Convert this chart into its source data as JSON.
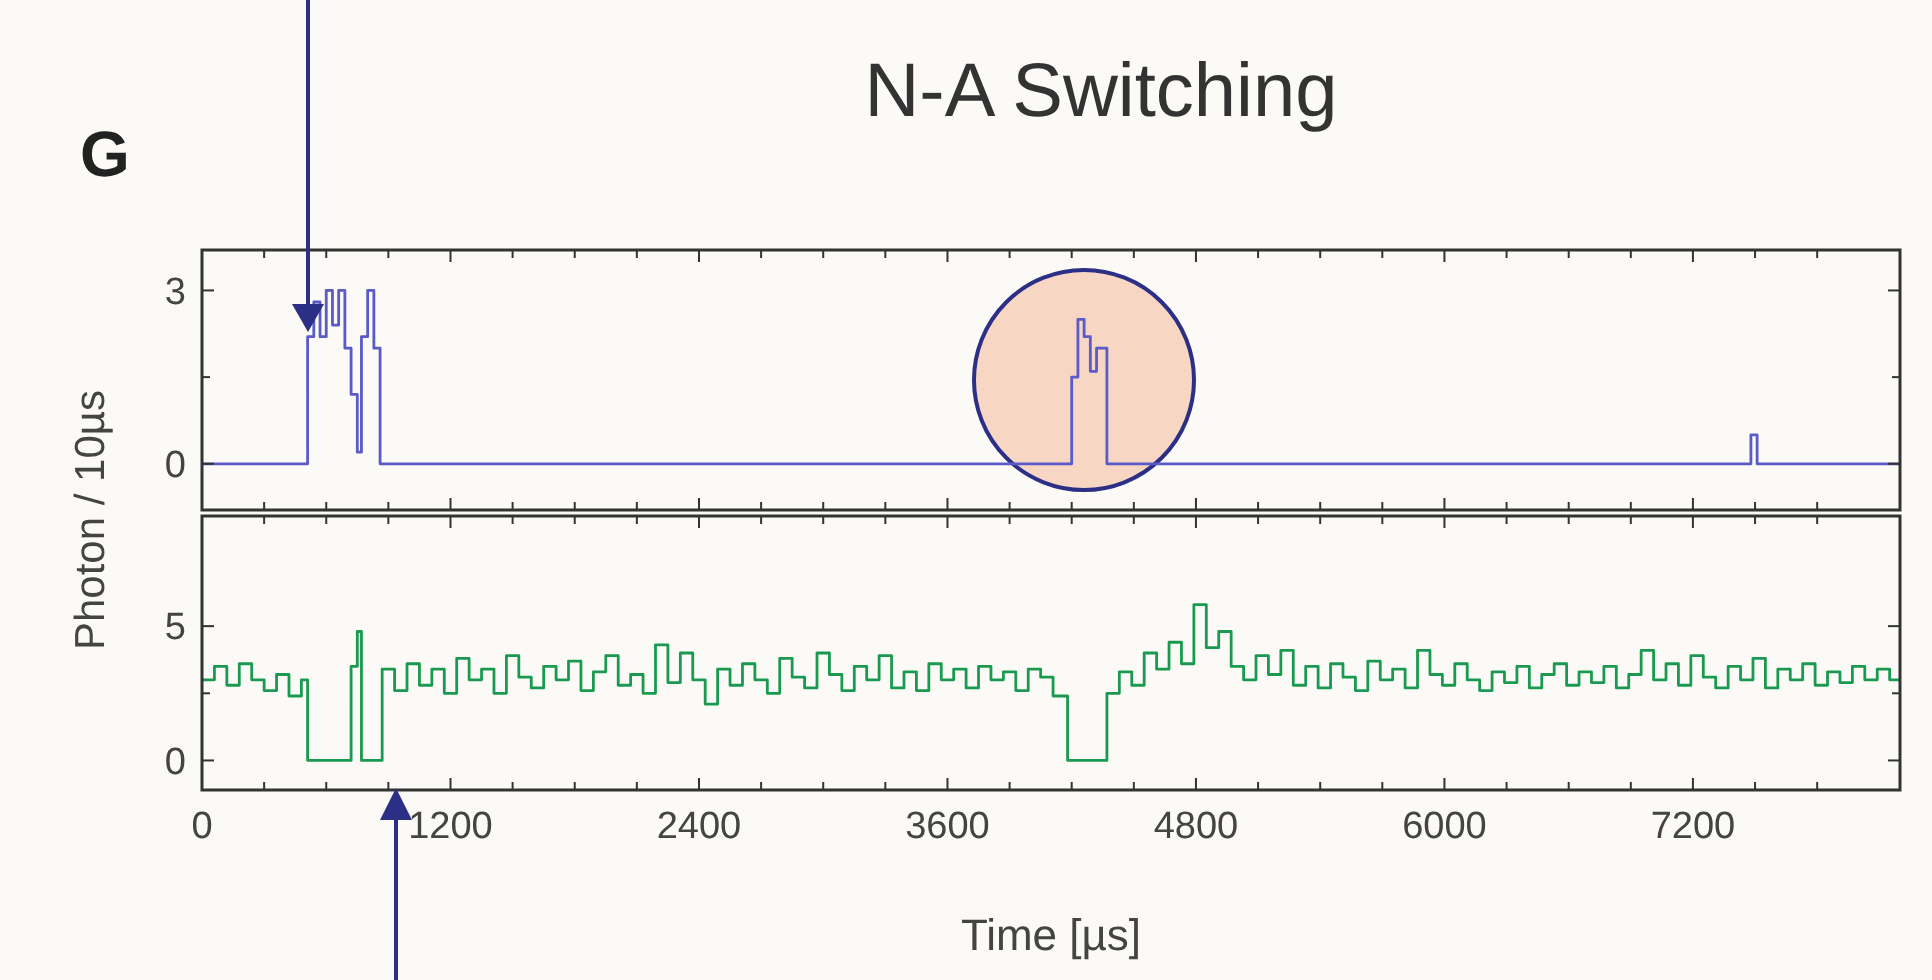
{
  "chart_data": [
    {
      "type": "step",
      "title": "N-A Switching",
      "annotations": [
        "G"
      ],
      "tick_labels": "y",
      "xlim": [
        0,
        8200
      ],
      "xticks": [
        0,
        {
          "value": 300,
          "label": null
        },
        {
          "value": 600,
          "label": null
        },
        {
          "value": 900,
          "label": null
        },
        1200,
        {
          "value": 1500,
          "label": null
        },
        {
          "value": 1800,
          "label": null
        },
        {
          "value": 2100,
          "label": null
        },
        2400,
        {
          "value": 2700,
          "label": null
        },
        {
          "value": 3000,
          "label": null
        },
        {
          "value": 3300,
          "label": null
        },
        3600,
        {
          "value": 3900,
          "label": null
        },
        {
          "value": 4200,
          "label": null
        },
        {
          "value": 4500,
          "label": null
        },
        4800,
        {
          "value": 5100,
          "label": null
        },
        {
          "value": 5400,
          "label": null
        },
        {
          "value": 5700,
          "label": null
        },
        6000,
        {
          "value": 6300,
          "label": null
        },
        {
          "value": 6600,
          "label": null
        },
        {
          "value": 6900,
          "label": null
        },
        7200,
        {
          "value": 7500,
          "label": null
        },
        {
          "value": 7800,
          "label": null
        }
      ],
      "ylim": [
        -0.8,
        3.7
      ],
      "yticks": [
        0,
        {
          "value": 1.5,
          "label": null
        },
        3
      ],
      "series": [
        {
          "color": "#5a5ac8",
          "x": [
            0,
            510,
            540,
            570,
            600,
            630,
            660,
            690,
            720,
            750,
            770,
            800,
            830,
            860,
            4200,
            4230,
            4260,
            4290,
            4320,
            4370,
            7480,
            7510,
            8200
          ],
          "values": [
            0,
            2.2,
            2.8,
            2.2,
            3,
            2.4,
            3,
            2,
            1.2,
            0.2,
            2.2,
            3,
            2,
            0,
            1.5,
            2.5,
            2.2,
            1.6,
            2,
            0,
            0.5,
            0,
            0
          ]
        }
      ]
    },
    {
      "type": "step",
      "xlabel": "Time [µs]",
      "ylabel": "Photon / 10µs",
      "xlim": [
        0,
        8200
      ],
      "xticks": [
        0,
        {
          "value": 300,
          "label": null
        },
        {
          "value": 600,
          "label": null
        },
        {
          "value": 900,
          "label": null
        },
        1200,
        {
          "value": 1500,
          "label": null
        },
        {
          "value": 1800,
          "label": null
        },
        {
          "value": 2100,
          "label": null
        },
        2400,
        {
          "value": 2700,
          "label": null
        },
        {
          "value": 3000,
          "label": null
        },
        {
          "value": 3300,
          "label": null
        },
        3600,
        {
          "value": 3900,
          "label": null
        },
        {
          "value": 4200,
          "label": null
        },
        {
          "value": 4500,
          "label": null
        },
        4800,
        {
          "value": 5100,
          "label": null
        },
        {
          "value": 5400,
          "label": null
        },
        {
          "value": 5700,
          "label": null
        },
        6000,
        {
          "value": 6300,
          "label": null
        },
        {
          "value": 6600,
          "label": null
        },
        {
          "value": 6900,
          "label": null
        },
        7200,
        {
          "value": 7500,
          "label": null
        },
        {
          "value": 7800,
          "label": null
        }
      ],
      "ylim": [
        -1.1,
        9.1
      ],
      "yticks": [
        0,
        {
          "value": 2.5,
          "label": null
        },
        5
      ],
      "series": [
        {
          "color": "#1a9a50",
          "x": [
            0,
            60,
            120,
            180,
            240,
            300,
            360,
            420,
            480,
            510,
            720,
            750,
            770,
            870,
            930,
            990,
            1050,
            1110,
            1170,
            1230,
            1290,
            1350,
            1410,
            1470,
            1530,
            1590,
            1650,
            1710,
            1770,
            1830,
            1890,
            1950,
            2010,
            2070,
            2130,
            2190,
            2250,
            2310,
            2370,
            2430,
            2490,
            2550,
            2610,
            2670,
            2730,
            2790,
            2850,
            2910,
            2970,
            3030,
            3090,
            3150,
            3210,
            3270,
            3330,
            3390,
            3450,
            3510,
            3570,
            3630,
            3690,
            3750,
            3810,
            3870,
            3930,
            3990,
            4050,
            4110,
            4180,
            4370,
            4430,
            4490,
            4550,
            4610,
            4670,
            4730,
            4790,
            4850,
            4910,
            4970,
            5030,
            5090,
            5150,
            5210,
            5270,
            5330,
            5390,
            5450,
            5510,
            5570,
            5630,
            5690,
            5750,
            5810,
            5870,
            5930,
            5990,
            6050,
            6110,
            6170,
            6230,
            6290,
            6350,
            6410,
            6470,
            6530,
            6590,
            6650,
            6710,
            6770,
            6830,
            6890,
            6950,
            7010,
            7070,
            7130,
            7190,
            7250,
            7310,
            7370,
            7430,
            7490,
            7550,
            7610,
            7670,
            7730,
            7790,
            7850,
            7910,
            7970,
            8030,
            8090,
            8150,
            8200
          ],
          "values": [
            3,
            3.5,
            2.8,
            3.6,
            3,
            2.6,
            3.2,
            2.4,
            3,
            0,
            3.5,
            4.8,
            0,
            3.4,
            2.6,
            3.6,
            2.8,
            3.4,
            2.5,
            3.8,
            3,
            3.4,
            2.5,
            3.9,
            3.1,
            2.7,
            3.5,
            3,
            3.7,
            2.6,
            3.3,
            3.9,
            2.8,
            3.2,
            2.5,
            4.3,
            2.9,
            4,
            3,
            2.1,
            3.4,
            2.8,
            3.6,
            3,
            2.5,
            3.8,
            3.1,
            2.7,
            4,
            3.2,
            2.6,
            3.5,
            3,
            3.9,
            2.7,
            3.3,
            2.6,
            3.6,
            3,
            3.4,
            2.7,
            3.5,
            3,
            3.3,
            2.6,
            3.4,
            3.1,
            2.4,
            0,
            2.5,
            3.3,
            2.8,
            4,
            3.4,
            4.4,
            3.6,
            5.8,
            4.2,
            4.8,
            3.5,
            3,
            3.9,
            3.2,
            4.1,
            2.8,
            3.5,
            2.7,
            3.6,
            3.1,
            2.6,
            3.7,
            3,
            3.4,
            2.7,
            4.1,
            3.2,
            2.8,
            3.6,
            3,
            2.6,
            3.3,
            2.9,
            3.5,
            2.7,
            3.2,
            3.6,
            2.8,
            3.3,
            2.9,
            3.5,
            2.7,
            3.2,
            4.1,
            3,
            3.6,
            2.8,
            3.9,
            3.1,
            2.7,
            3.5,
            3,
            3.8,
            2.7,
            3.4,
            3,
            3.6,
            2.8,
            3.3,
            2.9,
            3.5,
            3,
            3.4,
            3,
            3
          ]
        }
      ]
    }
  ]
}
